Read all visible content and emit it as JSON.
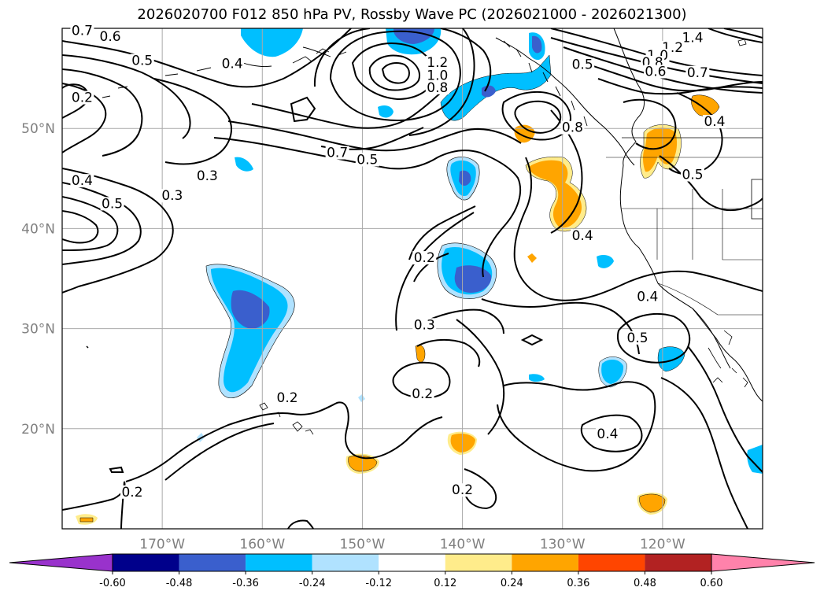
{
  "title": "2026020700 F012 850 hPa PV, Rossby Wave PC (2026021000 - 2026021300)",
  "map": {
    "lon_range": [
      -180,
      -110
    ],
    "lat_range": [
      10,
      60
    ],
    "lon_ticks": [
      {
        "lon": -170,
        "label": "170°W"
      },
      {
        "lon": -160,
        "label": "160°W"
      },
      {
        "lon": -150,
        "label": "150°W"
      },
      {
        "lon": -140,
        "label": "140°W"
      },
      {
        "lon": -130,
        "label": "130°W"
      },
      {
        "lon": -120,
        "label": "120°W"
      }
    ],
    "lat_ticks": [
      {
        "lat": 20,
        "label": "20°N"
      },
      {
        "lat": 30,
        "label": "30°N"
      },
      {
        "lat": 40,
        "label": "40°N"
      },
      {
        "lat": 50,
        "label": "50°N"
      }
    ],
    "grid": true,
    "contour_labels": [
      {
        "lon": -178.0,
        "lat": 59.5,
        "text": "0.7"
      },
      {
        "lon": -175.2,
        "lat": 58.9,
        "text": "0.6"
      },
      {
        "lon": -172.0,
        "lat": 56.5,
        "text": "0.5"
      },
      {
        "lon": -163.0,
        "lat": 56.2,
        "text": "0.4"
      },
      {
        "lon": -178.0,
        "lat": 52.8,
        "text": "0.2"
      },
      {
        "lon": -142.5,
        "lat": 56.3,
        "text": "1.2"
      },
      {
        "lon": -142.5,
        "lat": 55.0,
        "text": "1.0"
      },
      {
        "lon": -142.5,
        "lat": 53.8,
        "text": "0.8"
      },
      {
        "lon": -152.5,
        "lat": 47.3,
        "text": "0.7"
      },
      {
        "lon": -149.5,
        "lat": 46.6,
        "text": "0.5"
      },
      {
        "lon": -165.5,
        "lat": 45.0,
        "text": "0.3"
      },
      {
        "lon": -178.0,
        "lat": 44.5,
        "text": "0.4"
      },
      {
        "lon": -175.0,
        "lat": 42.2,
        "text": "0.5"
      },
      {
        "lon": -169.0,
        "lat": 43.0,
        "text": "0.3"
      },
      {
        "lon": -117.0,
        "lat": 58.8,
        "text": "1.4"
      },
      {
        "lon": -119.0,
        "lat": 57.8,
        "text": "1.2"
      },
      {
        "lon": -120.5,
        "lat": 57.0,
        "text": "1.0"
      },
      {
        "lon": -121.0,
        "lat": 56.3,
        "text": "0.8"
      },
      {
        "lon": -120.7,
        "lat": 55.4,
        "text": "0.6"
      },
      {
        "lon": -116.5,
        "lat": 55.3,
        "text": "0.7"
      },
      {
        "lon": -128.0,
        "lat": 56.1,
        "text": "0.5"
      },
      {
        "lon": -114.8,
        "lat": 50.4,
        "text": "0.4"
      },
      {
        "lon": -129.0,
        "lat": 49.8,
        "text": "0.8"
      },
      {
        "lon": -117.0,
        "lat": 45.1,
        "text": "0.5"
      },
      {
        "lon": -128.0,
        "lat": 39.0,
        "text": "0.4"
      },
      {
        "lon": -143.8,
        "lat": 36.8,
        "text": "0.2"
      },
      {
        "lon": -143.8,
        "lat": 30.1,
        "text": "0.3"
      },
      {
        "lon": -144.0,
        "lat": 23.2,
        "text": "0.2"
      },
      {
        "lon": -157.5,
        "lat": 22.8,
        "text": "0.2"
      },
      {
        "lon": -121.5,
        "lat": 32.9,
        "text": "0.4"
      },
      {
        "lon": -122.5,
        "lat": 28.8,
        "text": "0.5"
      },
      {
        "lon": -125.5,
        "lat": 19.2,
        "text": "0.4"
      },
      {
        "lon": -173.0,
        "lat": 13.4,
        "text": "0.2"
      },
      {
        "lon": -140.0,
        "lat": 13.6,
        "text": "0.2"
      }
    ]
  },
  "colorbar": {
    "levels": [
      "-0.60",
      "-0.48",
      "-0.36",
      "-0.24",
      "-0.12",
      "0.12",
      "0.24",
      "0.36",
      "0.48",
      "0.60"
    ],
    "colors": [
      "#9932cc",
      "#00008b",
      "#3a5fcd",
      "#00bfff",
      "#b0e2ff",
      "#ffffff",
      "#ffec8b",
      "#ffa500",
      "#ff4500",
      "#b22222",
      "#ff82ab"
    ]
  },
  "fill_colors": {
    "neg_strong": "#3a5fcd",
    "neg_mid": "#00bfff",
    "neg_weak": "#b0e2ff",
    "pos_weak": "#ffec8b",
    "pos_mid": "#ffa500"
  }
}
